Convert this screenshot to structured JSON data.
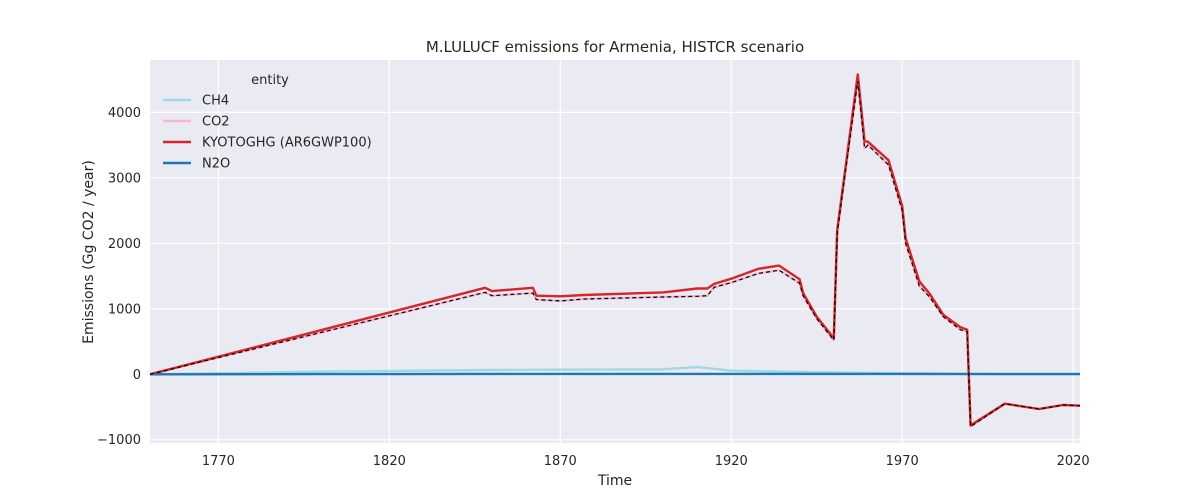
{
  "chart_data": {
    "type": "line",
    "title": "M.LULUCF emissions for Armenia, HISTCR scenario",
    "xlabel": "Time",
    "ylabel": "Emissions (Gg CO2 / year)",
    "xlim": [
      1750,
      2022
    ],
    "ylim": [
      -1050,
      4800
    ],
    "xticks": [
      1770,
      1820,
      1870,
      1920,
      1970,
      2020
    ],
    "yticks": [
      -1000,
      0,
      1000,
      2000,
      3000,
      4000
    ],
    "grid": true,
    "legend": {
      "title": "entity",
      "position": "top-left"
    },
    "series": [
      {
        "name": "CH4",
        "color": "#9edae5",
        "x": [
          1750,
          1800,
          1850,
          1870,
          1900,
          1910,
          1920,
          1940,
          1960,
          1980,
          2000,
          2022
        ],
        "y": [
          0,
          40,
          65,
          70,
          75,
          110,
          55,
          35,
          20,
          10,
          5,
          5
        ]
      },
      {
        "name": "CO2",
        "color": "#f7b6d2",
        "x": [
          1750,
          1848,
          1850,
          1862,
          1863,
          1870,
          1877,
          1900,
          1910,
          1913,
          1915,
          1920,
          1928,
          1934,
          1940,
          1941,
          1945,
          1950,
          1951,
          1957,
          1959,
          1960,
          1966,
          1970,
          1971,
          1975,
          1978,
          1982,
          1987,
          1989,
          1990,
          2000,
          2010,
          2017,
          2022
        ],
        "y": [
          0,
          1250,
          1200,
          1240,
          1140,
          1120,
          1150,
          1180,
          1190,
          1200,
          1330,
          1400,
          1540,
          1590,
          1390,
          1200,
          850,
          520,
          2160,
          4480,
          3450,
          3500,
          3200,
          2500,
          2000,
          1350,
          1180,
          880,
          680,
          650,
          -800,
          -450,
          -530,
          -470,
          -480
        ]
      },
      {
        "name": "KYOTOGHG (AR6GWP100)",
        "color": "#d62728",
        "x": [
          1750,
          1848,
          1850,
          1862,
          1863,
          1870,
          1877,
          1900,
          1910,
          1913,
          1915,
          1920,
          1928,
          1934,
          1940,
          1941,
          1945,
          1950,
          1951,
          1957,
          1959,
          1960,
          1966,
          1970,
          1971,
          1975,
          1978,
          1982,
          1987,
          1989,
          1990,
          2000,
          2010,
          2017,
          2022
        ],
        "y": [
          0,
          1320,
          1270,
          1320,
          1200,
          1190,
          1210,
          1250,
          1310,
          1310,
          1380,
          1460,
          1610,
          1660,
          1450,
          1240,
          880,
          550,
          2200,
          4580,
          3560,
          3550,
          3270,
          2570,
          2080,
          1420,
          1230,
          910,
          720,
          680,
          -780,
          -450,
          -530,
          -470,
          -480
        ]
      },
      {
        "name": "N2O",
        "color": "#1f77b4",
        "x": [
          1750,
          1800,
          1850,
          1900,
          1950,
          2000,
          2022
        ],
        "y": [
          0,
          3,
          5,
          6,
          5,
          3,
          3
        ]
      }
    ],
    "reference_line": {
      "style": "dashed",
      "color": "#000000",
      "x": [
        1750,
        1848,
        1850,
        1862,
        1863,
        1870,
        1877,
        1900,
        1910,
        1913,
        1915,
        1920,
        1928,
        1934,
        1940,
        1941,
        1945,
        1950,
        1951,
        1957,
        1959,
        1960,
        1966,
        1970,
        1971,
        1975,
        1978,
        1982,
        1987,
        1989,
        1990,
        2000,
        2010,
        2017,
        2022
      ],
      "y": [
        0,
        1250,
        1200,
        1240,
        1140,
        1120,
        1150,
        1180,
        1190,
        1200,
        1330,
        1400,
        1540,
        1590,
        1390,
        1200,
        850,
        520,
        2160,
        4480,
        3450,
        3500,
        3200,
        2500,
        2000,
        1350,
        1180,
        880,
        680,
        650,
        -800,
        -450,
        -530,
        -470,
        -480
      ]
    }
  }
}
